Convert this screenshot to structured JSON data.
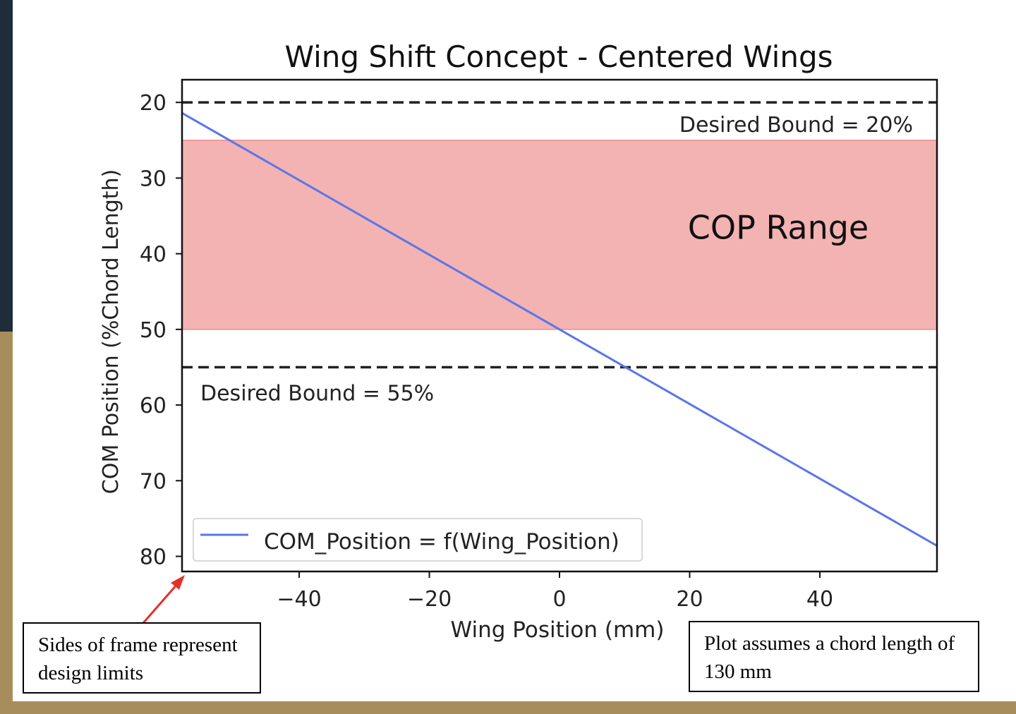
{
  "chart_data": {
    "type": "line",
    "title": "Wing Shift Concept - Centered Wings",
    "xlabel": "Wing Position (mm)",
    "ylabel": "COM Position (%Chord Length)",
    "xlim": [
      -58,
      58
    ],
    "ylim": [
      82,
      17
    ],
    "y_inverted": true,
    "xticks": [
      -40,
      -20,
      0,
      20,
      40
    ],
    "xtick_labels": [
      "−40",
      "−20",
      "0",
      "20",
      "40"
    ],
    "yticks": [
      20,
      30,
      40,
      50,
      60,
      70,
      80
    ],
    "ytick_labels": [
      "20",
      "30",
      "40",
      "50",
      "60",
      "70",
      "80"
    ],
    "grid": false,
    "legend_position": "lower-left",
    "series": [
      {
        "name": "COM_Position = f(Wing_Position)",
        "color": "#5a76e8",
        "x": [
          -58,
          58
        ],
        "y": [
          21.4,
          78.6
        ]
      }
    ],
    "hlines": [
      {
        "y": 20,
        "label": "Desired Bound = 20%",
        "style": "dashed",
        "color": "#222222"
      },
      {
        "y": 55,
        "label": "Desired Bound = 55%",
        "style": "dashed",
        "color": "#222222"
      }
    ],
    "band": {
      "y_from": 25,
      "y_to": 50,
      "label": "COP Range",
      "color": "#f3b3b3",
      "edge_color": "#ef8c8c"
    }
  },
  "annotations": {
    "left_note": "Sides of frame represent design limits",
    "right_note": "Plot assumes a chord length of 130 mm",
    "arrow_color": "#e0322b"
  }
}
